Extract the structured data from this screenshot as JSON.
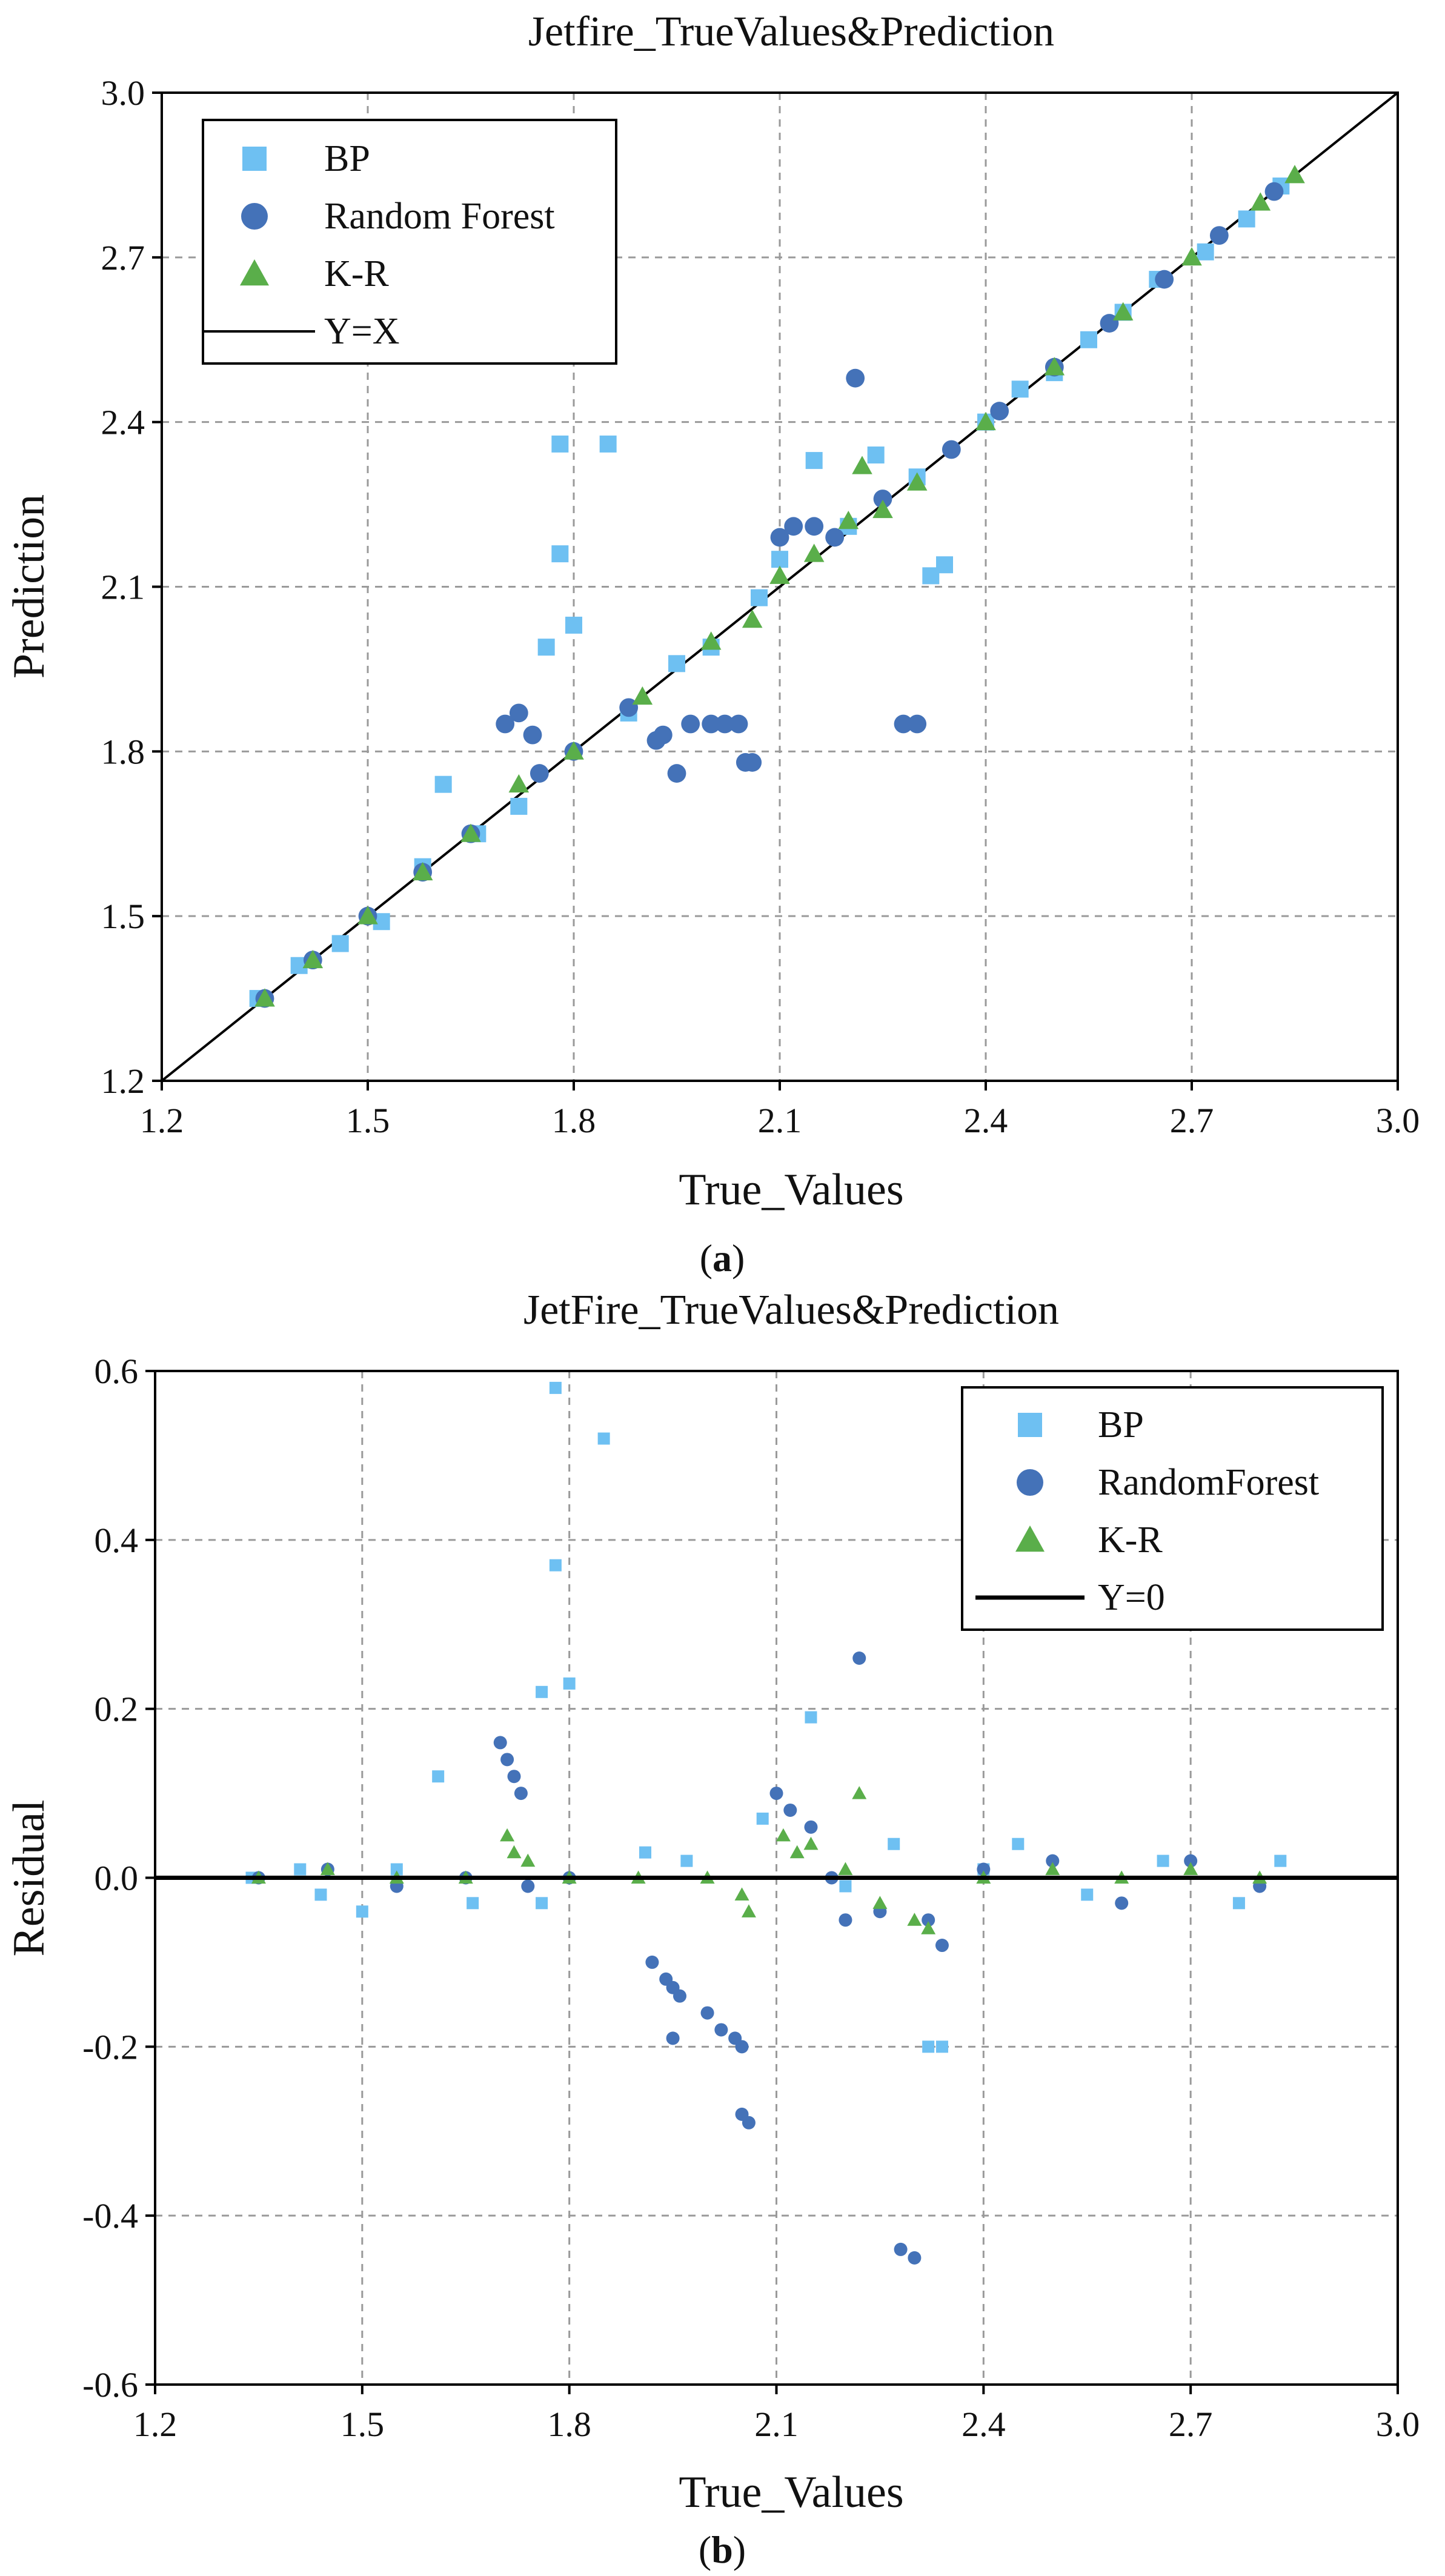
{
  "colors": {
    "bp": "#6ec0f2",
    "rf": "#4472b8",
    "kr": "#5aae4a",
    "line": "#000000"
  },
  "icons": {
    "bp": "square-marker-icon",
    "rf": "circle-marker-icon",
    "kr": "triangle-marker-icon",
    "line": "line-segment-icon"
  },
  "chart_data": [
    {
      "type": "scatter",
      "panel": "a",
      "caption": "(a)",
      "title": "Jetfire_TrueValues&Prediction",
      "xlabel": "True_Values",
      "ylabel": "Prediction",
      "xlim": [
        1.2,
        3.0
      ],
      "ylim": [
        1.2,
        3.0
      ],
      "xticks": [
        "1.2",
        "1.5",
        "1.8",
        "2.1",
        "2.4",
        "2.7",
        "3.0"
      ],
      "yticks": [
        "1.2",
        "1.5",
        "1.8",
        "2.1",
        "2.4",
        "2.7",
        "3.0"
      ],
      "grid": true,
      "legend_position": "top-left",
      "legend": [
        "BP",
        "Random Forest",
        "K-R",
        "Y=X"
      ],
      "reference_line": {
        "label": "Y=X",
        "from": [
          1.2,
          1.2
        ],
        "to": [
          3.0,
          3.0
        ]
      },
      "series": [
        {
          "name": "BP",
          "marker": "square",
          "points": [
            [
              1.34,
              1.35
            ],
            [
              1.4,
              1.41
            ],
            [
              1.46,
              1.45
            ],
            [
              1.52,
              1.49
            ],
            [
              1.58,
              1.59
            ],
            [
              1.61,
              1.74
            ],
            [
              1.66,
              1.65
            ],
            [
              1.72,
              1.7
            ],
            [
              1.76,
              1.99
            ],
            [
              1.78,
              2.36
            ],
            [
              1.78,
              2.16
            ],
            [
              1.8,
              2.03
            ],
            [
              1.85,
              2.36
            ],
            [
              1.88,
              1.87
            ],
            [
              1.95,
              1.96
            ],
            [
              2.0,
              1.99
            ],
            [
              2.07,
              2.08
            ],
            [
              2.1,
              2.15
            ],
            [
              2.15,
              2.33
            ],
            [
              2.2,
              2.21
            ],
            [
              2.24,
              2.34
            ],
            [
              2.3,
              2.3
            ],
            [
              2.32,
              2.12
            ],
            [
              2.34,
              2.14
            ],
            [
              2.4,
              2.4
            ],
            [
              2.45,
              2.46
            ],
            [
              2.5,
              2.49
            ],
            [
              2.55,
              2.55
            ],
            [
              2.6,
              2.6
            ],
            [
              2.65,
              2.66
            ],
            [
              2.72,
              2.71
            ],
            [
              2.78,
              2.77
            ],
            [
              2.83,
              2.83
            ]
          ]
        },
        {
          "name": "Random Forest",
          "marker": "circle",
          "points": [
            [
              1.35,
              1.35
            ],
            [
              1.42,
              1.42
            ],
            [
              1.5,
              1.5
            ],
            [
              1.58,
              1.58
            ],
            [
              1.65,
              1.65
            ],
            [
              1.7,
              1.85
            ],
            [
              1.72,
              1.87
            ],
            [
              1.74,
              1.83
            ],
            [
              1.75,
              1.76
            ],
            [
              1.8,
              1.8
            ],
            [
              1.88,
              1.88
            ],
            [
              1.92,
              1.82
            ],
            [
              1.93,
              1.83
            ],
            [
              1.95,
              1.76
            ],
            [
              1.97,
              1.85
            ],
            [
              2.0,
              1.85
            ],
            [
              2.02,
              1.85
            ],
            [
              2.04,
              1.85
            ],
            [
              2.05,
              1.78
            ],
            [
              2.06,
              1.78
            ],
            [
              2.1,
              2.19
            ],
            [
              2.12,
              2.21
            ],
            [
              2.15,
              2.21
            ],
            [
              2.18,
              2.19
            ],
            [
              2.21,
              2.48
            ],
            [
              2.25,
              2.26
            ],
            [
              2.28,
              1.85
            ],
            [
              2.3,
              1.85
            ],
            [
              2.35,
              2.35
            ],
            [
              2.42,
              2.42
            ],
            [
              2.5,
              2.5
            ],
            [
              2.58,
              2.58
            ],
            [
              2.66,
              2.66
            ],
            [
              2.74,
              2.74
            ],
            [
              2.82,
              2.82
            ]
          ]
        },
        {
          "name": "K-R",
          "marker": "triangle",
          "points": [
            [
              1.35,
              1.35
            ],
            [
              1.42,
              1.42
            ],
            [
              1.5,
              1.5
            ],
            [
              1.58,
              1.58
            ],
            [
              1.65,
              1.65
            ],
            [
              1.72,
              1.74
            ],
            [
              1.8,
              1.8
            ],
            [
              1.9,
              1.9
            ],
            [
              2.0,
              2.0
            ],
            [
              2.06,
              2.04
            ],
            [
              2.1,
              2.12
            ],
            [
              2.15,
              2.16
            ],
            [
              2.2,
              2.22
            ],
            [
              2.22,
              2.32
            ],
            [
              2.25,
              2.24
            ],
            [
              2.3,
              2.29
            ],
            [
              2.4,
              2.4
            ],
            [
              2.5,
              2.5
            ],
            [
              2.6,
              2.6
            ],
            [
              2.7,
              2.7
            ],
            [
              2.8,
              2.8
            ],
            [
              2.85,
              2.85
            ]
          ]
        }
      ]
    },
    {
      "type": "scatter",
      "panel": "b",
      "caption": "(b)",
      "title": "JetFire_TrueValues&Prediction",
      "xlabel": "True_Values",
      "ylabel": "Residual",
      "xlim": [
        1.2,
        3.0
      ],
      "ylim": [
        -0.6,
        0.6
      ],
      "xticks": [
        "1.2",
        "1.5",
        "1.8",
        "2.1",
        "2.4",
        "2.7",
        "3.0"
      ],
      "yticks": [
        "-0.6",
        "-0.4",
        "-0.2",
        "0.0",
        "0.2",
        "0.4",
        "0.6"
      ],
      "grid": true,
      "legend_position": "top-right",
      "legend": [
        "BP",
        "RandomForest",
        "K-R",
        "Y=0"
      ],
      "reference_line": {
        "label": "Y=0",
        "from": [
          1.2,
          0.0
        ],
        "to": [
          3.0,
          0.0
        ]
      },
      "series": [
        {
          "name": "BP",
          "marker": "square",
          "points": [
            [
              1.34,
              0.0
            ],
            [
              1.41,
              0.01
            ],
            [
              1.44,
              -0.02
            ],
            [
              1.5,
              -0.04
            ],
            [
              1.55,
              0.01
            ],
            [
              1.61,
              0.12
            ],
            [
              1.66,
              -0.03
            ],
            [
              1.76,
              0.22
            ],
            [
              1.76,
              -0.03
            ],
            [
              1.78,
              0.58
            ],
            [
              1.78,
              0.37
            ],
            [
              1.8,
              0.23
            ],
            [
              1.85,
              0.52
            ],
            [
              1.91,
              0.03
            ],
            [
              1.97,
              0.02
            ],
            [
              2.08,
              0.07
            ],
            [
              2.15,
              0.19
            ],
            [
              2.2,
              -0.01
            ],
            [
              2.27,
              0.04
            ],
            [
              2.32,
              -0.2
            ],
            [
              2.34,
              -0.2
            ],
            [
              2.4,
              0.01
            ],
            [
              2.45,
              0.04
            ],
            [
              2.55,
              -0.02
            ],
            [
              2.66,
              0.02
            ],
            [
              2.77,
              -0.03
            ],
            [
              2.83,
              0.02
            ]
          ]
        },
        {
          "name": "RandomForest",
          "marker": "circle",
          "points": [
            [
              1.35,
              0.0
            ],
            [
              1.45,
              0.01
            ],
            [
              1.55,
              -0.01
            ],
            [
              1.65,
              0.0
            ],
            [
              1.7,
              0.16
            ],
            [
              1.71,
              0.14
            ],
            [
              1.72,
              0.12
            ],
            [
              1.73,
              0.1
            ],
            [
              1.74,
              -0.01
            ],
            [
              1.8,
              0.0
            ],
            [
              1.92,
              -0.1
            ],
            [
              1.94,
              -0.12
            ],
            [
              1.95,
              -0.13
            ],
            [
              1.96,
              -0.14
            ],
            [
              1.95,
              -0.19
            ],
            [
              2.0,
              -0.16
            ],
            [
              2.02,
              -0.18
            ],
            [
              2.04,
              -0.19
            ],
            [
              2.05,
              -0.2
            ],
            [
              2.05,
              -0.28
            ],
            [
              2.06,
              -0.29
            ],
            [
              2.1,
              0.1
            ],
            [
              2.12,
              0.08
            ],
            [
              2.15,
              0.06
            ],
            [
              2.18,
              0.0
            ],
            [
              2.2,
              -0.05
            ],
            [
              2.22,
              0.26
            ],
            [
              2.25,
              -0.04
            ],
            [
              2.28,
              -0.44
            ],
            [
              2.3,
              -0.45
            ],
            [
              2.32,
              -0.05
            ],
            [
              2.34,
              -0.08
            ],
            [
              2.4,
              0.01
            ],
            [
              2.5,
              0.02
            ],
            [
              2.6,
              -0.03
            ],
            [
              2.7,
              0.02
            ],
            [
              2.8,
              -0.01
            ]
          ]
        },
        {
          "name": "K-R",
          "marker": "triangle",
          "points": [
            [
              1.35,
              0.0
            ],
            [
              1.45,
              0.01
            ],
            [
              1.55,
              0.0
            ],
            [
              1.65,
              0.0
            ],
            [
              1.71,
              0.05
            ],
            [
              1.72,
              0.03
            ],
            [
              1.74,
              0.02
            ],
            [
              1.8,
              0.0
            ],
            [
              1.9,
              0.0
            ],
            [
              2.0,
              0.0
            ],
            [
              2.06,
              -0.04
            ],
            [
              2.05,
              -0.02
            ],
            [
              2.11,
              0.05
            ],
            [
              2.13,
              0.03
            ],
            [
              2.15,
              0.04
            ],
            [
              2.2,
              0.01
            ],
            [
              2.22,
              0.1
            ],
            [
              2.25,
              -0.03
            ],
            [
              2.3,
              -0.05
            ],
            [
              2.32,
              -0.06
            ],
            [
              2.4,
              0.0
            ],
            [
              2.5,
              0.01
            ],
            [
              2.6,
              0.0
            ],
            [
              2.7,
              0.01
            ],
            [
              2.8,
              0.0
            ]
          ]
        }
      ]
    }
  ]
}
